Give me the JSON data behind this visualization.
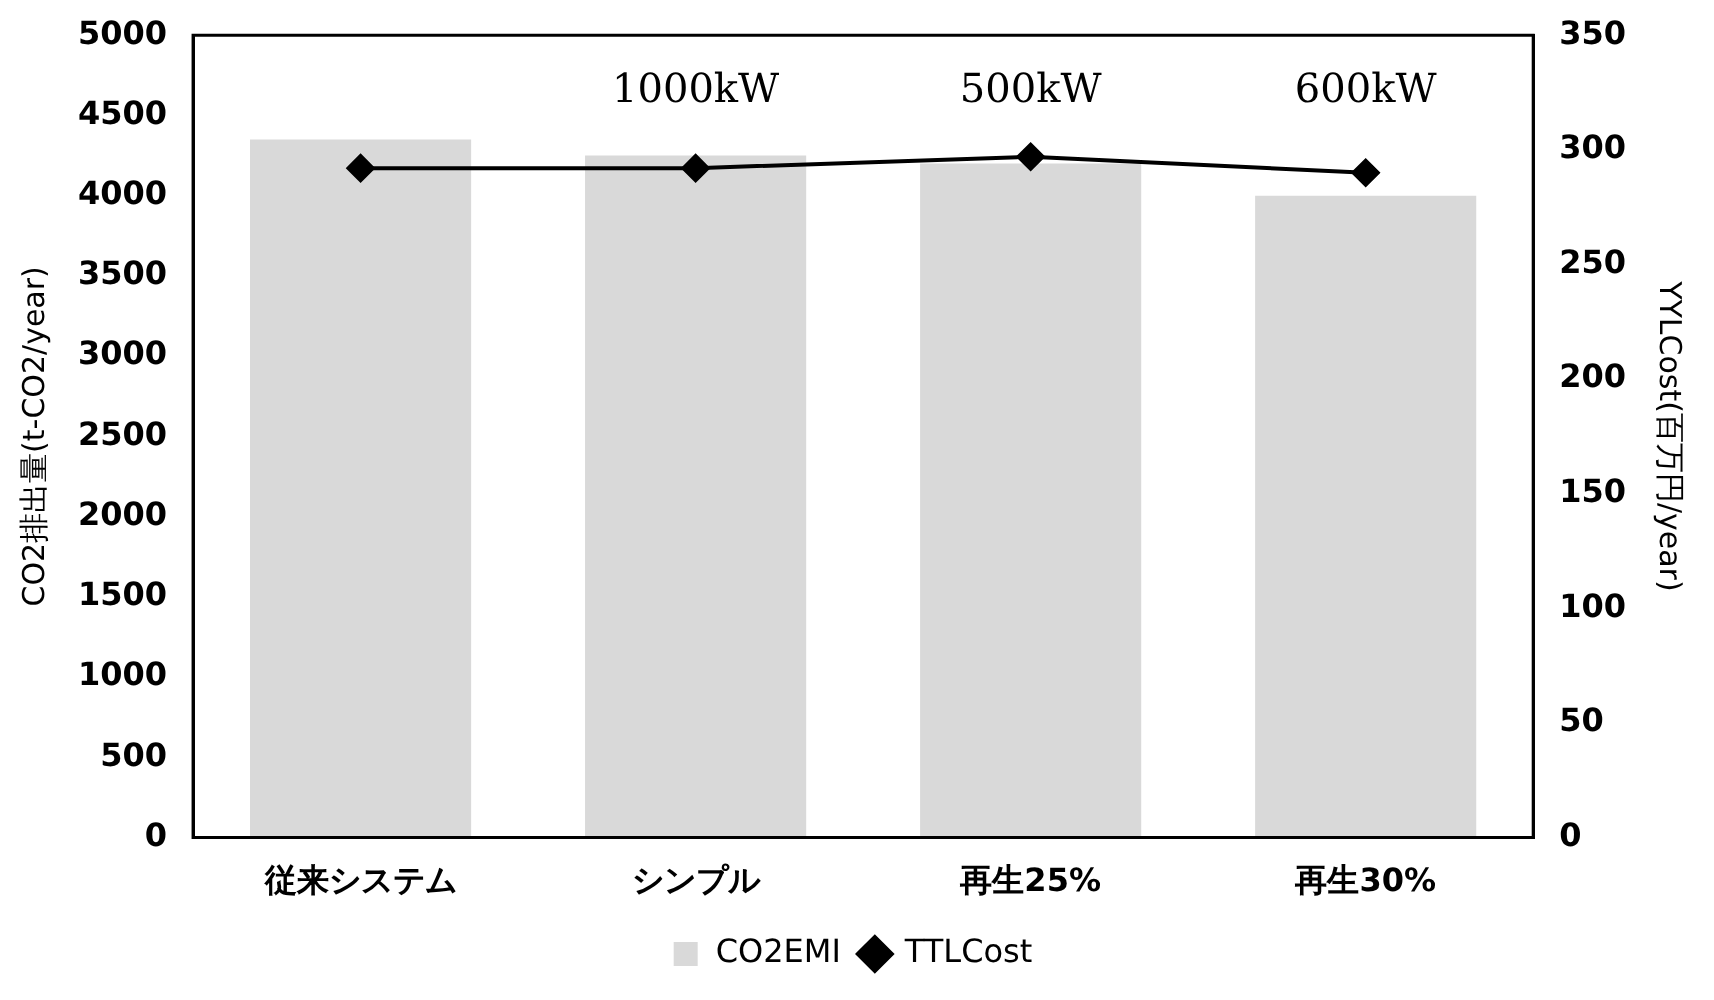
{
  "chart_data": {
    "type": "bar",
    "ylabel": "CO2排出量(t-CO2/year)",
    "y2label": "YYLCost(百万円/year)",
    "categories": [
      "従来システム",
      "シンプル",
      "再生25%",
      "再生30%"
    ],
    "series": [
      {
        "name": "CO2EMI",
        "color": "#d9d9d9",
        "values": [
          4350,
          4250,
          4200,
          4000
        ]
      },
      {
        "name": "TTLCost",
        "type": "line",
        "axis": "y2",
        "color": "#000000",
        "marker": "diamond",
        "values": [
          292,
          292,
          297,
          290
        ]
      }
    ],
    "ylim": [
      0,
      5000
    ],
    "yticks": [
      0,
      500,
      1000,
      1500,
      2000,
      2500,
      3000,
      3500,
      4000,
      4500,
      5000
    ],
    "y2lim": [
      0,
      350
    ],
    "y2ticks": [
      0,
      50,
      100,
      150,
      200,
      250,
      300,
      350
    ],
    "annotations": [
      "1000kW",
      "500kW",
      "600kW"
    ],
    "grid": false,
    "legend": "bottom"
  }
}
